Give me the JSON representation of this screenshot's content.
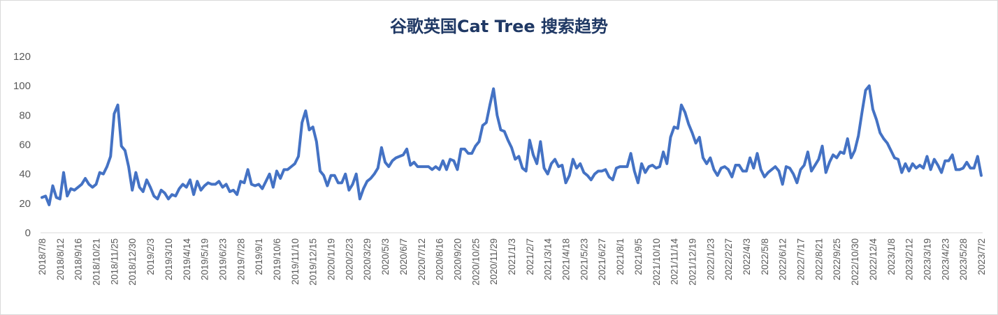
{
  "chart_data": {
    "type": "line",
    "title": "谷歌英国Cat Tree 搜索趋势",
    "xlabel": "",
    "ylabel": "",
    "ylim": [
      0,
      120
    ],
    "yticks": [
      "0",
      "20",
      "40",
      "60",
      "80",
      "100",
      "120"
    ],
    "grid": false,
    "legend": "none",
    "line_color": "#4472c4",
    "x_tick_labels": [
      "2018/7/8",
      "2018/8/12",
      "2018/9/16",
      "2018/10/21",
      "2018/11/25",
      "2018/12/30",
      "2019/2/3",
      "2019/3/10",
      "2019/4/14",
      "2019/5/19",
      "2019/6/23",
      "2019/7/28",
      "2019/9/1",
      "2019/10/6",
      "2019/11/10",
      "2019/12/15",
      "2020/1/19",
      "2020/2/23",
      "2020/3/29",
      "2020/5/3",
      "2020/6/7",
      "2020/7/12",
      "2020/8/16",
      "2020/9/20",
      "2020/10/25",
      "2020/11/29",
      "2021/1/3",
      "2021/2/7",
      "2021/3/14",
      "2021/4/18",
      "2021/5/23",
      "2021/6/27",
      "2021/8/1",
      "2021/9/5",
      "2021/10/10",
      "2021/11/14",
      "2021/12/19",
      "2022/1/23",
      "2022/2/27",
      "2022/4/3",
      "2022/5/8",
      "2022/6/12",
      "2022/7/17",
      "2022/8/21",
      "2022/9/25",
      "2022/10/30",
      "2022/12/4",
      "2023/1/8",
      "2023/2/12",
      "2023/3/19",
      "2023/4/23",
      "2023/5/28",
      "2023/7/2"
    ],
    "values": [
      24,
      25,
      19,
      32,
      24,
      23,
      41,
      25,
      30,
      29,
      31,
      33,
      37,
      33,
      31,
      33,
      41,
      40,
      45,
      52,
      81,
      87,
      59,
      56,
      45,
      29,
      41,
      31,
      28,
      36,
      31,
      25,
      23,
      29,
      27,
      23,
      26,
      25,
      30,
      33,
      31,
      36,
      26,
      35,
      29,
      32,
      34,
      33,
      33,
      35,
      31,
      33,
      28,
      29,
      26,
      35,
      34,
      43,
      33,
      32,
      33,
      30,
      35,
      40,
      31,
      42,
      37,
      43,
      43,
      45,
      47,
      52,
      75,
      83,
      70,
      72,
      62,
      42,
      39,
      32,
      39,
      39,
      34,
      34,
      40,
      29,
      33,
      40,
      23,
      30,
      35,
      37,
      40,
      44,
      58,
      48,
      45,
      49,
      51,
      52,
      53,
      57,
      46,
      48,
      45,
      45,
      45,
      45,
      43,
      45,
      43,
      49,
      43,
      50,
      49,
      43,
      57,
      57,
      54,
      54,
      59,
      62,
      73,
      75,
      87,
      98,
      80,
      70,
      69,
      63,
      58,
      50,
      52,
      44,
      42,
      63,
      53,
      47,
      62,
      44,
      40,
      47,
      50,
      45,
      46,
      34,
      39,
      50,
      44,
      47,
      41,
      39,
      36,
      40,
      42,
      42,
      43,
      38,
      36,
      44,
      45,
      45,
      45,
      54,
      42,
      34,
      47,
      41,
      45,
      46,
      44,
      45,
      55,
      47,
      65,
      72,
      71,
      87,
      82,
      74,
      68,
      61,
      65,
      51,
      47,
      51,
      43,
      39,
      44,
      45,
      43,
      38,
      46,
      46,
      42,
      42,
      51,
      44,
      54,
      43,
      38,
      41,
      43,
      45,
      42,
      33,
      45,
      44,
      40,
      34,
      43,
      46,
      55,
      42,
      46,
      50,
      59,
      41,
      48,
      53,
      51,
      55,
      54,
      64,
      51,
      56,
      66,
      82,
      97,
      100,
      84,
      77,
      68,
      64,
      61,
      56,
      51,
      50,
      41,
      47,
      42,
      47,
      44,
      46,
      44,
      52,
      43,
      50,
      46,
      41,
      49,
      49,
      53,
      43,
      43,
      44,
      48,
      44,
      44,
      52,
      39
    ]
  }
}
